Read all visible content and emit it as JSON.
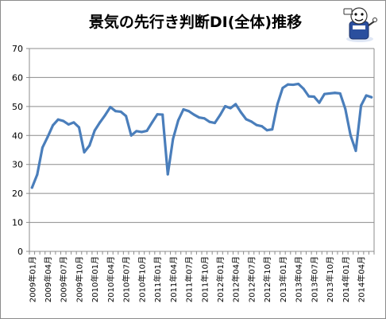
{
  "chart_data": {
    "type": "line",
    "title": "景気の先行き判断DI(全体)推移",
    "xlabel": "",
    "ylabel": "",
    "ylim": [
      0,
      70
    ],
    "yticks": [
      0,
      10,
      20,
      30,
      40,
      50,
      60,
      70
    ],
    "grid": true,
    "legend": "none",
    "x": [
      "2009年01月",
      "2009年02月",
      "2009年03月",
      "2009年04月",
      "2009年05月",
      "2009年06月",
      "2009年07月",
      "2009年08月",
      "2009年09月",
      "2009年10月",
      "2009年11月",
      "2009年12月",
      "2010年01月",
      "2010年02月",
      "2010年03月",
      "2010年04月",
      "2010年05月",
      "2010年06月",
      "2010年07月",
      "2010年08月",
      "2010年09月",
      "2010年10月",
      "2010年11月",
      "2010年12月",
      "2011年01月",
      "2011年02月",
      "2011年03月",
      "2011年04月",
      "2011年05月",
      "2011年06月",
      "2011年07月",
      "2011年08月",
      "2011年09月",
      "2011年10月",
      "2011年11月",
      "2011年12月",
      "2012年01月",
      "2012年02月",
      "2012年03月",
      "2012年04月",
      "2012年05月",
      "2012年06月",
      "2012年07月",
      "2012年08月",
      "2012年09月",
      "2012年10月",
      "2012年11月",
      "2012年12月",
      "2013年01月",
      "2013年02月",
      "2013年03月",
      "2013年04月",
      "2013年05月",
      "2013年06月",
      "2013年07月",
      "2013年08月",
      "2013年09月",
      "2013年10月",
      "2013年11月",
      "2013年12月",
      "2014年01月",
      "2014年02月",
      "2014年03月",
      "2014年04月",
      "2014年05月",
      "2014年06月"
    ],
    "xtick_labels": [
      "2009年01月",
      "2009年04月",
      "2009年07月",
      "2009年10月",
      "2010年01月",
      "2010年04月",
      "2010年07月",
      "2010年10月",
      "2011年01月",
      "2011年04月",
      "2011年07月",
      "2011年10月",
      "2012年01月",
      "2012年04月",
      "2012年07月",
      "2012年10月",
      "2013年01月",
      "2013年04月",
      "2013年07月",
      "2013年10月",
      "2014年01月",
      "2014年04月"
    ],
    "series": [
      {
        "color": "#4a7ebb",
        "values": [
          22.0,
          26.5,
          35.8,
          39.5,
          43.5,
          45.5,
          45.0,
          43.8,
          44.5,
          42.8,
          34.2,
          36.5,
          41.7,
          44.5,
          47.0,
          49.8,
          48.4,
          48.2,
          46.7,
          40.0,
          41.5,
          41.2,
          41.6,
          44.5,
          47.3,
          47.2,
          26.6,
          38.8,
          45.2,
          49.0,
          48.4,
          47.2,
          46.2,
          45.9,
          44.7,
          44.3,
          47.0,
          50.1,
          49.4,
          50.8,
          48.0,
          45.6,
          44.8,
          43.6,
          43.2,
          41.8,
          42.1,
          50.8,
          56.4,
          57.6,
          57.5,
          57.8,
          56.1,
          53.5,
          53.4,
          51.3,
          54.3,
          54.5,
          54.7,
          54.5,
          49.1,
          40.0,
          34.7,
          50.3,
          53.8,
          53.2
        ]
      }
    ]
  },
  "logo": {
    "icon": "mascot-illustration-icon"
  }
}
